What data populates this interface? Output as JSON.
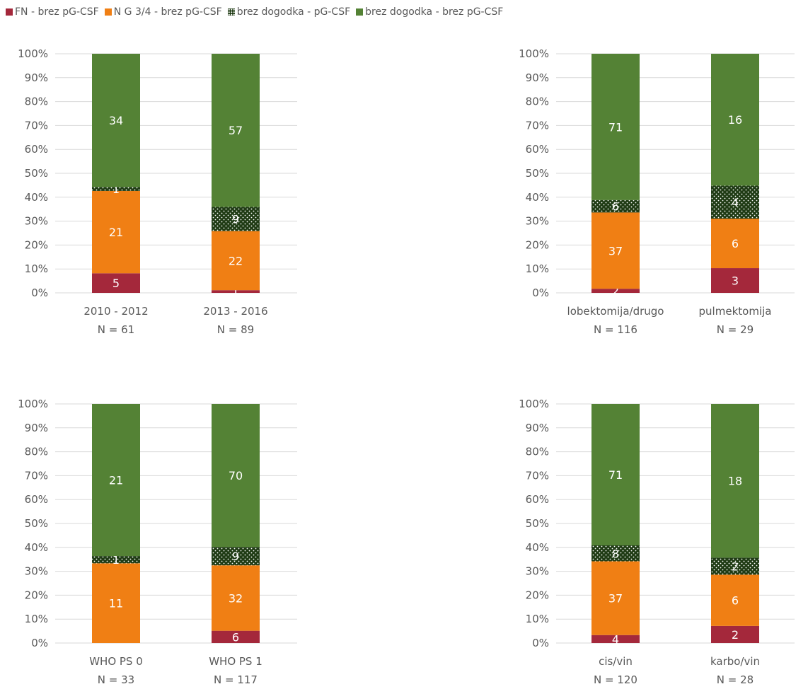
{
  "legend": {
    "items": [
      {
        "label": "FN - brez pG-CSF",
        "color": "#a4283b",
        "pattern": "solid"
      },
      {
        "label": "N G 3/4 - brez pG-CSF",
        "color": "#f07f14",
        "pattern": "solid"
      },
      {
        "label": "brez dogodka - pG-CSF",
        "color": "#1f3b14",
        "pattern": "dotted"
      },
      {
        "label": "brez dogodka - brez pG-CSF",
        "color": "#548235",
        "pattern": "solid"
      }
    ]
  },
  "chart_data": [
    {
      "type": "bar",
      "stacked": "percent",
      "categories": [
        "2010 - 2012",
        "2013 - 2016"
      ],
      "category_n": [
        "N = 61",
        "N = 89"
      ],
      "series": [
        {
          "name": "FN - brez pG-CSF",
          "values": [
            5,
            1
          ]
        },
        {
          "name": "N G 3/4 - brez pG-CSF",
          "values": [
            21,
            22
          ]
        },
        {
          "name": "brez dogodka - pG-CSF",
          "values": [
            1,
            9
          ]
        },
        {
          "name": "brez dogodka - brez pG-CSF",
          "values": [
            34,
            57
          ]
        }
      ],
      "yticks": [
        "0%",
        "10%",
        "20%",
        "30%",
        "40%",
        "50%",
        "60%",
        "70%",
        "80%",
        "90%",
        "100%"
      ],
      "ylim": [
        0,
        100
      ],
      "grid": true
    },
    {
      "type": "bar",
      "stacked": "percent",
      "categories": [
        "lobektomija/drugo",
        "pulmektomija"
      ],
      "category_n": [
        "N = 116",
        "N = 29"
      ],
      "series": [
        {
          "name": "FN - brez pG-CSF",
          "values": [
            2,
            3
          ]
        },
        {
          "name": "N G 3/4 - brez pG-CSF",
          "values": [
            37,
            6
          ]
        },
        {
          "name": "brez dogodka - pG-CSF",
          "values": [
            6,
            4
          ]
        },
        {
          "name": "brez dogodka - brez pG-CSF",
          "values": [
            71,
            16
          ]
        }
      ],
      "yticks": [
        "0%",
        "10%",
        "20%",
        "30%",
        "40%",
        "50%",
        "60%",
        "70%",
        "80%",
        "90%",
        "100%"
      ],
      "ylim": [
        0,
        100
      ],
      "grid": true
    },
    {
      "type": "bar",
      "stacked": "percent",
      "categories": [
        "WHO PS 0",
        "WHO PS 1"
      ],
      "category_n": [
        "N = 33",
        "N = 117"
      ],
      "series": [
        {
          "name": "FN - brez pG-CSF",
          "values": [
            0,
            6
          ]
        },
        {
          "name": "N G 3/4 - brez pG-CSF",
          "values": [
            11,
            32
          ]
        },
        {
          "name": "brez dogodka - pG-CSF",
          "values": [
            1,
            9
          ]
        },
        {
          "name": "brez dogodka - brez pG-CSF",
          "values": [
            21,
            70
          ]
        }
      ],
      "yticks": [
        "0%",
        "10%",
        "20%",
        "30%",
        "40%",
        "50%",
        "60%",
        "70%",
        "80%",
        "90%",
        "100%"
      ],
      "ylim": [
        0,
        100
      ],
      "grid": true
    },
    {
      "type": "bar",
      "stacked": "percent",
      "categories": [
        "cis/vin",
        "karbo/vin"
      ],
      "category_n": [
        "N = 120",
        "N = 28"
      ],
      "series": [
        {
          "name": "FN - brez pG-CSF",
          "values": [
            4,
            2
          ]
        },
        {
          "name": "N G 3/4 - brez pG-CSF",
          "values": [
            37,
            6
          ]
        },
        {
          "name": "brez dogodka - pG-CSF",
          "values": [
            8,
            2
          ]
        },
        {
          "name": "brez dogodka - brez pG-CSF",
          "values": [
            71,
            18
          ]
        }
      ],
      "yticks": [
        "0%",
        "10%",
        "20%",
        "30%",
        "40%",
        "50%",
        "60%",
        "70%",
        "80%",
        "90%",
        "100%"
      ],
      "ylim": [
        0,
        100
      ],
      "grid": true
    }
  ]
}
